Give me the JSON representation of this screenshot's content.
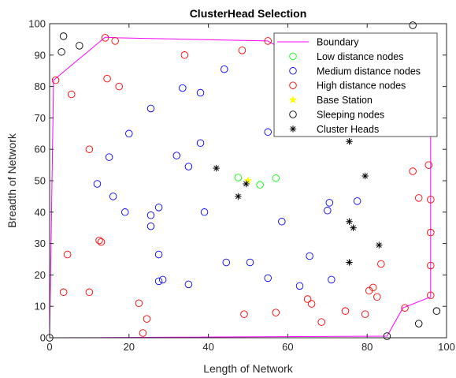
{
  "chart_data": {
    "type": "scatter",
    "title": "ClusterHead Selection",
    "xlabel": "Length of Network",
    "ylabel": "Breadth of Network",
    "xlim": [
      0,
      100
    ],
    "ylim": [
      0,
      100
    ],
    "xticks": [
      "0",
      "20",
      "40",
      "60",
      "80",
      "100"
    ],
    "yticks": [
      "0",
      "10",
      "20",
      "30",
      "40",
      "50",
      "60",
      "70",
      "80",
      "90",
      "100"
    ],
    "grid": false,
    "legend_position": "top-right",
    "colors": {
      "boundary": "#ff00ff",
      "low": "#00ff00",
      "medium": "#0000ff",
      "high": "#ff0000",
      "base": "#ffff00",
      "sleeping": "#000000",
      "cluster_heads": "#000000"
    },
    "series": [
      {
        "name": "Boundary",
        "kind": "line",
        "points": [
          [
            0,
            0
          ],
          [
            85,
            0.5
          ],
          [
            89,
            9.5
          ],
          [
            96,
            13
          ],
          [
            96,
            65
          ],
          [
            55,
            94.5
          ],
          [
            17,
            95.5
          ],
          [
            14,
            95.7
          ],
          [
            1,
            82
          ],
          [
            0,
            0
          ]
        ]
      },
      {
        "name": "Low distance nodes",
        "kind": "marker-circle",
        "points": [
          [
            47.5,
            51
          ],
          [
            53,
            48.7
          ],
          [
            57,
            50.8
          ]
        ]
      },
      {
        "name": "Medium distance nodes",
        "kind": "marker-circle",
        "points": [
          [
            44,
            85.5
          ],
          [
            33.5,
            79.5
          ],
          [
            38,
            78
          ],
          [
            25.5,
            73
          ],
          [
            20,
            65
          ],
          [
            55,
            65.5
          ],
          [
            38,
            62
          ],
          [
            32,
            58
          ],
          [
            15,
            57.5
          ],
          [
            35,
            54.5
          ],
          [
            12,
            49
          ],
          [
            16,
            45
          ],
          [
            27.5,
            41.5
          ],
          [
            19,
            40
          ],
          [
            25.5,
            39
          ],
          [
            39,
            40
          ],
          [
            58.5,
            37
          ],
          [
            70.5,
            43
          ],
          [
            70,
            40.5
          ],
          [
            77.5,
            43.5
          ],
          [
            25.5,
            35.5
          ],
          [
            27.5,
            26.5
          ],
          [
            44.5,
            24
          ],
          [
            50.5,
            24
          ],
          [
            28.5,
            18.5
          ],
          [
            27.5,
            18
          ],
          [
            35,
            17
          ],
          [
            55,
            19
          ],
          [
            63,
            16.5
          ],
          [
            65.5,
            26
          ],
          [
            71,
            18.5
          ]
        ]
      },
      {
        "name": "High distance nodes",
        "kind": "marker-circle",
        "points": [
          [
            14,
            95.5
          ],
          [
            16.5,
            94.5
          ],
          [
            55,
            94.5
          ],
          [
            48.5,
            91.5
          ],
          [
            34,
            90
          ],
          [
            1.5,
            82
          ],
          [
            5.5,
            77.5
          ],
          [
            14.5,
            82.5
          ],
          [
            17.5,
            80
          ],
          [
            10,
            60
          ],
          [
            91.5,
            53
          ],
          [
            95.5,
            55
          ],
          [
            93,
            44.5
          ],
          [
            96,
            44
          ],
          [
            96,
            33.5
          ],
          [
            96,
            23
          ],
          [
            96,
            13.5
          ],
          [
            4.5,
            26.5
          ],
          [
            12.5,
            31
          ],
          [
            13,
            30.5
          ],
          [
            3.5,
            14.5
          ],
          [
            10,
            14.5
          ],
          [
            22.5,
            11
          ],
          [
            24.5,
            6
          ],
          [
            23.5,
            1.5
          ],
          [
            49,
            7.5
          ],
          [
            57,
            8
          ],
          [
            65,
            12.3
          ],
          [
            66,
            10.8
          ],
          [
            68.5,
            5
          ],
          [
            74.5,
            8.5
          ],
          [
            79.5,
            7.5
          ],
          [
            80.5,
            15
          ],
          [
            81.5,
            16
          ],
          [
            82.5,
            13
          ],
          [
            83.5,
            23.5
          ],
          [
            89.5,
            9.5
          ]
        ]
      },
      {
        "name": "Base Station",
        "kind": "marker-star",
        "points": [
          [
            50,
            50
          ]
        ]
      },
      {
        "name": "Sleeping nodes",
        "kind": "marker-circle",
        "points": [
          [
            3.5,
            96
          ],
          [
            3,
            91
          ],
          [
            7.5,
            93
          ],
          [
            91.5,
            99.5
          ],
          [
            97.5,
            8.5
          ],
          [
            93,
            4.5
          ],
          [
            85,
            0.5
          ],
          [
            0,
            0
          ]
        ]
      },
      {
        "name": "Cluster Heads",
        "kind": "marker-asterisk",
        "points": [
          [
            42,
            54
          ],
          [
            47.5,
            45
          ],
          [
            49.5,
            49
          ],
          [
            75.5,
            62.5
          ],
          [
            79.5,
            51.5
          ],
          [
            75.5,
            37
          ],
          [
            76.5,
            35
          ],
          [
            83,
            29.5
          ],
          [
            75.5,
            24
          ]
        ]
      }
    ]
  }
}
